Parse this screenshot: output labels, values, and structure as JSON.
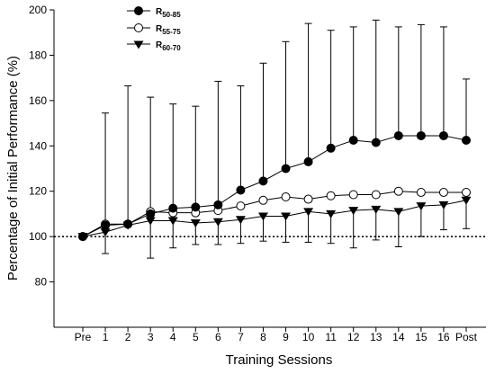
{
  "chart_data": {
    "type": "line",
    "xlabel": "Training Sessions",
    "ylabel": "Percentage of Initial Performance (%)",
    "categories": [
      "Pre",
      "1",
      "2",
      "3",
      "4",
      "5",
      "6",
      "7",
      "8",
      "9",
      "10",
      "11",
      "12",
      "13",
      "14",
      "15",
      "16",
      "Post"
    ],
    "ylim": [
      60,
      200
    ],
    "yticks": [
      80,
      100,
      120,
      140,
      160,
      180,
      200
    ],
    "reference_line": 100,
    "grid": false,
    "legend_position": "top-left",
    "series": [
      {
        "name": "R50-85",
        "legend_main": "R",
        "legend_sub": "50-85",
        "marker": "circle-filled",
        "values": [
          100,
          105,
          105.5,
          110,
          112.5,
          113,
          114,
          120.5,
          124.5,
          130,
          133,
          139,
          142.5,
          141.5,
          144.5,
          144.5,
          144.5,
          142.5
        ],
        "error_upper": [
          100,
          154.5,
          166.5,
          161.5,
          158.5,
          157.5,
          168.5,
          166.5,
          176.5,
          186,
          194,
          191,
          192.5,
          195.5,
          192.5,
          193.5,
          192.5,
          169.5
        ],
        "error_lower": [
          null,
          null,
          null,
          null,
          null,
          null,
          null,
          null,
          null,
          null,
          null,
          null,
          null,
          null,
          null,
          null,
          null,
          null
        ]
      },
      {
        "name": "R55-75",
        "legend_main": "R",
        "legend_sub": "55-75",
        "marker": "circle-open",
        "values": [
          100,
          105.5,
          105.5,
          111,
          110.5,
          110.5,
          111.5,
          113.5,
          116,
          117.5,
          116.5,
          118,
          118.5,
          118.5,
          120,
          119.5,
          119.5,
          119.5
        ],
        "error_upper": [
          null,
          null,
          null,
          null,
          null,
          null,
          null,
          null,
          null,
          null,
          null,
          null,
          null,
          null,
          null,
          null,
          null,
          null
        ],
        "error_lower": [
          null,
          null,
          null,
          null,
          null,
          null,
          null,
          null,
          null,
          null,
          null,
          null,
          null,
          null,
          null,
          null,
          null,
          null
        ]
      },
      {
        "name": "R60-70",
        "legend_main": "R",
        "legend_sub": "60-70",
        "marker": "triangle-down-filled",
        "values": [
          100,
          102,
          105,
          107,
          107,
          106,
          106.5,
          107.5,
          109,
          109,
          111,
          110,
          111.5,
          112,
          111,
          113.5,
          114,
          116
        ],
        "error_upper": [
          null,
          null,
          null,
          null,
          null,
          null,
          null,
          null,
          null,
          null,
          null,
          null,
          null,
          null,
          null,
          null,
          null,
          null
        ],
        "error_lower": [
          100,
          92.5,
          105,
          90.5,
          95,
          96.5,
          96.5,
          97,
          98,
          97.5,
          97.5,
          97,
          95,
          98.5,
          95.5,
          100,
          103,
          103.5
        ]
      }
    ]
  }
}
